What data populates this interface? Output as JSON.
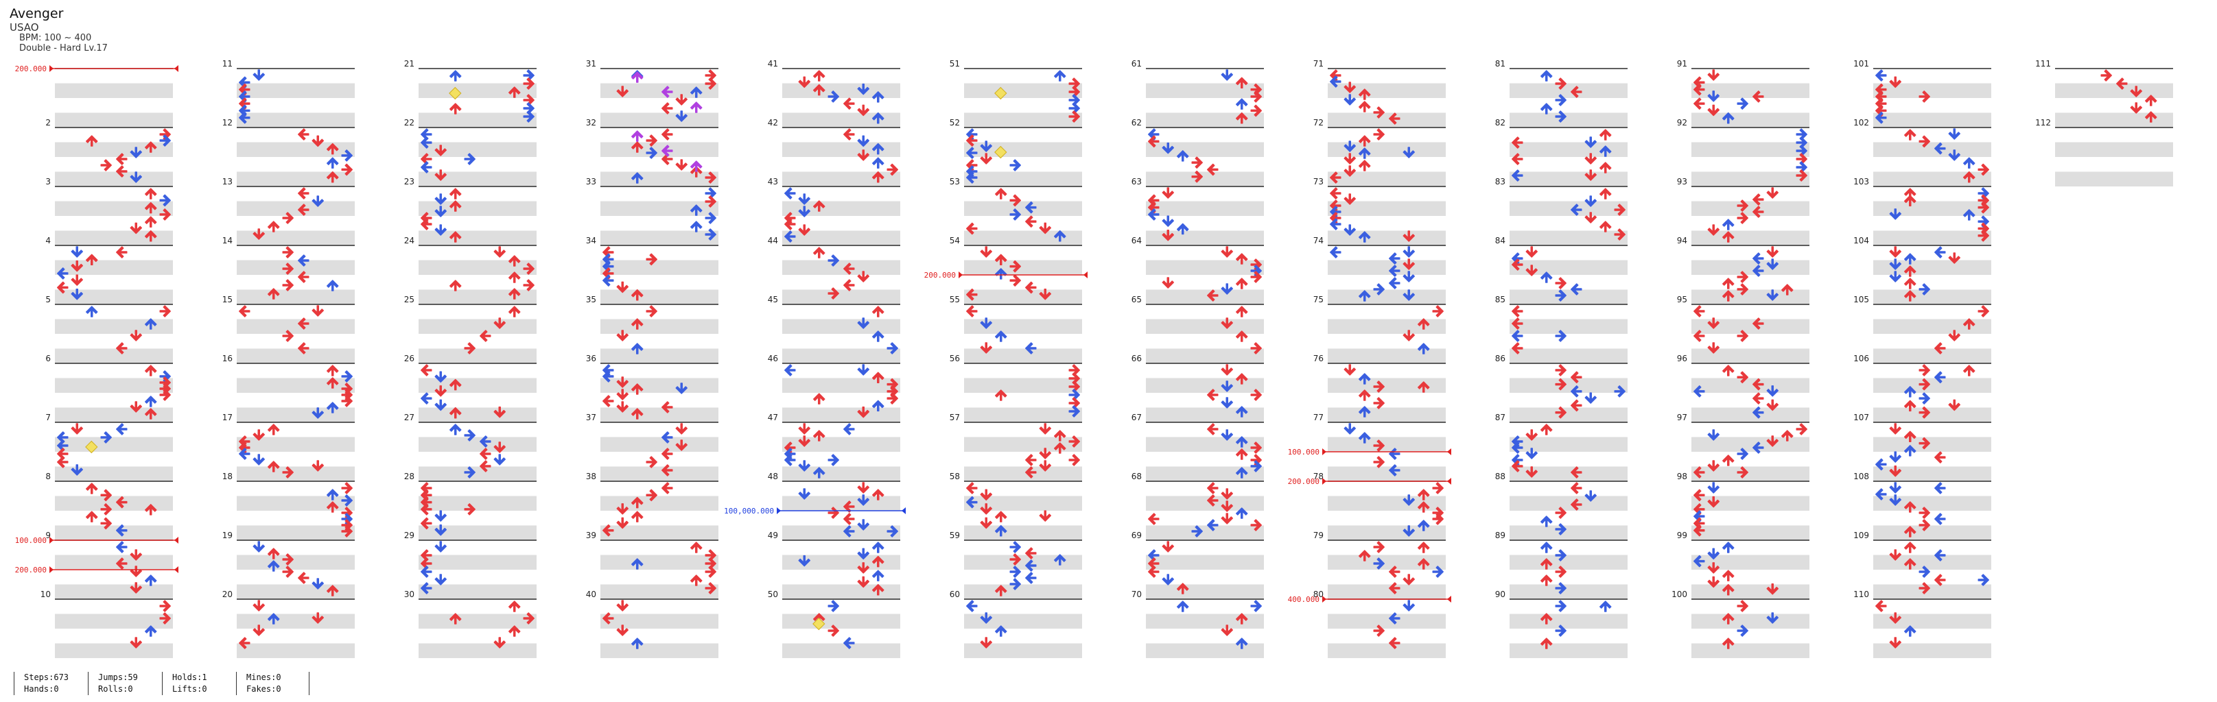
{
  "song": {
    "title": "Avenger",
    "artist": "USAO",
    "bpm": "BPM: 100 ~ 400",
    "difficulty": "Double - Hard Lv.17"
  },
  "colors": {
    "band": "#dedede",
    "line": "#2a2a2a",
    "arrow_red": "#e8393c",
    "arrow_blue": "#3a5fe0",
    "arrow_purple": "#b040e0",
    "mine_yellow": "#f3e060",
    "bpm_red": "#e02020",
    "bpm_blue": "#2040e0"
  },
  "measures": {
    "count": 112,
    "labels": [
      "2",
      "3",
      "4",
      "5",
      "6",
      "7",
      "8",
      "9",
      "10",
      "11",
      "12",
      "13",
      "14",
      "15",
      "16",
      "17",
      "18",
      "19",
      "20",
      "21",
      "22",
      "23",
      "24",
      "25",
      "26",
      "27",
      "28",
      "29",
      "30",
      "31",
      "32",
      "33",
      "34",
      "35",
      "36",
      "37",
      "38",
      "39",
      "40",
      "41",
      "42",
      "43",
      "44",
      "45",
      "46",
      "47",
      "48",
      "49",
      "50",
      "51",
      "52",
      "53",
      "54",
      "55",
      "56",
      "57",
      "58",
      "59",
      "60",
      "61",
      "62",
      "63",
      "64",
      "65",
      "66",
      "67",
      "68",
      "69",
      "70",
      "71",
      "72",
      "73",
      "74",
      "75",
      "76",
      "77",
      "78",
      "79",
      "80",
      "81",
      "82",
      "83",
      "84",
      "85",
      "86",
      "87",
      "88",
      "89",
      "90",
      "91",
      "92",
      "93",
      "94",
      "95",
      "96",
      "97",
      "98",
      "99",
      "100",
      "101",
      "102",
      "103",
      "104",
      "105",
      "106",
      "107",
      "108",
      "109",
      "110",
      "111",
      "112"
    ]
  },
  "bpm_changes": [
    {
      "measure": 1,
      "label": "200.000",
      "color": "red"
    },
    {
      "measure": 9,
      "label": "100.000",
      "color": "red"
    },
    {
      "measure": 9.5,
      "label": "200.000",
      "color": "red"
    },
    {
      "measure": 48.5,
      "label": "100,000.000",
      "color": "blue"
    },
    {
      "measure": 54.5,
      "label": "200.000",
      "color": "red"
    },
    {
      "measure": 77.5,
      "label": "100.000",
      "color": "red"
    },
    {
      "measure": 78,
      "label": "200.000",
      "color": "red"
    },
    {
      "measure": 80,
      "label": "400.000",
      "color": "red"
    }
  ],
  "stats": [
    {
      "line1": "Steps:673",
      "line2": "Hands:0"
    },
    {
      "line1": "Jumps:59",
      "line2": "Rolls:0"
    },
    {
      "line1": "Holds:1",
      "line2": "Lifts:0"
    },
    {
      "line1": "Mines:0",
      "line2": "Fakes:0"
    }
  ]
}
